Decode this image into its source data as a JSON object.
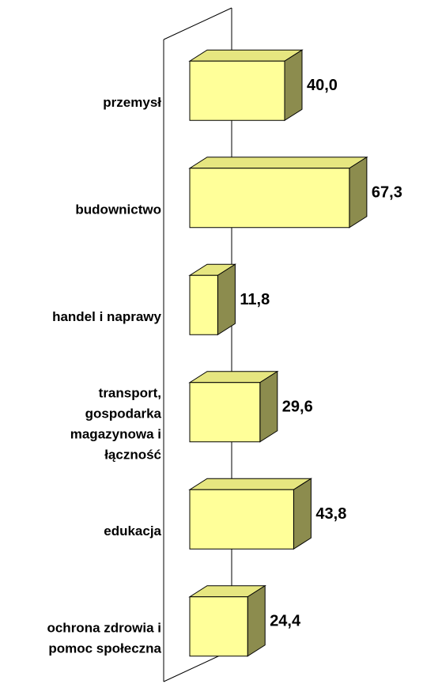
{
  "chart_data": {
    "type": "bar3d_horizontal",
    "categories": [
      [
        "przemysł"
      ],
      [
        "budownictwo"
      ],
      [
        "handel i naprawy"
      ],
      [
        "transport,",
        "gospodarka",
        "magazynowa i",
        "łączność"
      ],
      [
        "edukacja"
      ],
      [
        "ochrona zdrowia i",
        "pomoc społeczna"
      ]
    ],
    "values": [
      40.0,
      67.3,
      11.8,
      29.6,
      43.8,
      24.4
    ],
    "value_labels": [
      "40,0",
      "67,3",
      "11,8",
      "29,6",
      "43,8",
      "24,4"
    ],
    "color": "#ffff99",
    "side_color": "#8c8c4e",
    "top_color": "#e6e680",
    "xlim": [
      0,
      70
    ]
  }
}
